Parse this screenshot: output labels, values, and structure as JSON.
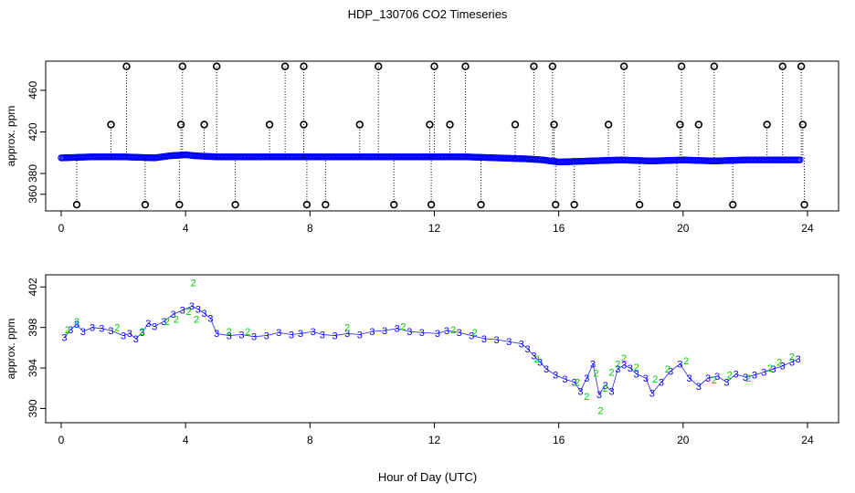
{
  "title": "HDP_130706  CO2 Timeseries",
  "colors": {
    "points_black": "#000000",
    "points_blue": "#0000ff",
    "points_green": "#00cc00",
    "points_cyan": "#00cccc"
  },
  "chart_data": [
    {
      "type": "scatter",
      "panel": "top",
      "title": "",
      "xlabel": "",
      "ylabel": "approx. ppm",
      "xlim": [
        -0.5,
        25
      ],
      "ylim": [
        344,
        488
      ],
      "xticks": [
        0,
        4,
        8,
        12,
        16,
        20,
        24
      ],
      "yticks": [
        360,
        380,
        420,
        460
      ],
      "series": [
        {
          "marker": "circle-black",
          "x": [
            0.5,
            2.1,
            1.6,
            2.7,
            3.8,
            3.9,
            3.85,
            4.6,
            5.0,
            5.6,
            6.7,
            7.2,
            7.8,
            7.8,
            7.9,
            8.5,
            9.6,
            10.2,
            10.7,
            11.9,
            11.85,
            12.0,
            12.5,
            13.0,
            13.5,
            14.6,
            15.2,
            15.8,
            15.85,
            15.9,
            16.5,
            17.6,
            18.1,
            18.6,
            19.8,
            19.9,
            19.95,
            20.5,
            21.0,
            21.6,
            22.7,
            23.2,
            23.8,
            23.85,
            23.9
          ],
          "y": [
            350,
            483,
            427,
            350,
            350,
            483,
            427,
            427,
            483,
            350,
            427,
            483,
            483,
            427,
            350,
            350,
            427,
            483,
            350,
            350,
            427,
            483,
            427,
            483,
            350,
            427,
            483,
            483,
            427,
            350,
            350,
            427,
            483,
            350,
            350,
            427,
            483,
            427,
            483,
            350,
            427,
            483,
            483,
            427,
            350
          ]
        }
      ],
      "baseline": {
        "x": [
          0,
          1,
          2,
          3,
          3.5,
          4,
          4.3,
          5,
          6,
          7,
          8,
          9,
          10,
          11,
          12,
          13,
          14,
          15,
          15.5,
          16,
          17,
          18,
          19,
          20,
          21,
          22,
          23,
          23.8
        ],
        "y": [
          395,
          396,
          396,
          395,
          397,
          398,
          397,
          396,
          396,
          396,
          396,
          396,
          396,
          396,
          396,
          396,
          395,
          394,
          393,
          391,
          392,
          393,
          392,
          393,
          392,
          393,
          393,
          393
        ]
      }
    },
    {
      "type": "scatter",
      "panel": "bottom",
      "title": "",
      "xlabel": "Hour of Day (UTC)",
      "ylabel": "approx. ppm",
      "xlim": [
        -0.5,
        25
      ],
      "ylim": [
        388.6,
        403.2
      ],
      "xticks": [
        0,
        4,
        8,
        12,
        16,
        20,
        24
      ],
      "yticks": [
        390,
        394,
        398,
        402
      ],
      "series": [
        {
          "label_glyph": "3",
          "color": "#0000ff",
          "x": [
            0.1,
            0.3,
            0.5,
            0.7,
            1.0,
            1.3,
            1.6,
            2.0,
            2.2,
            2.4,
            2.6,
            2.8,
            3.0,
            3.3,
            3.6,
            3.9,
            4.2,
            4.4,
            4.6,
            4.8,
            5.0,
            5.4,
            5.8,
            6.2,
            6.6,
            7.0,
            7.4,
            7.7,
            8.1,
            8.4,
            8.8,
            9.2,
            9.6,
            10.0,
            10.4,
            10.8,
            11.2,
            11.6,
            12.1,
            12.4,
            12.8,
            13.2,
            13.6,
            14.0,
            14.4,
            14.8,
            15.0,
            15.2,
            15.4,
            15.6,
            15.9,
            16.2,
            16.5,
            16.7,
            16.9,
            17.1,
            17.3,
            17.5,
            17.7,
            17.9,
            18.1,
            18.3,
            18.5,
            18.8,
            19.0,
            19.3,
            19.6,
            19.9,
            20.2,
            20.5,
            20.8,
            21.1,
            21.4,
            21.7,
            22.0,
            22.3,
            22.6,
            22.9,
            23.2,
            23.5,
            23.7
          ],
          "y": [
            397.0,
            397.8,
            398.3,
            397.6,
            398.0,
            397.9,
            397.7,
            397.2,
            397.4,
            396.9,
            397.5,
            398.4,
            398.1,
            398.6,
            399.3,
            399.7,
            400.1,
            399.8,
            399.4,
            398.9,
            397.4,
            397.2,
            397.3,
            397.1,
            397.2,
            397.5,
            397.3,
            397.4,
            397.6,
            397.3,
            397.2,
            397.4,
            397.3,
            397.6,
            397.7,
            397.9,
            397.6,
            397.5,
            397.4,
            397.7,
            397.5,
            397.2,
            396.9,
            396.8,
            396.6,
            396.4,
            395.9,
            395.2,
            394.6,
            393.9,
            393.3,
            392.9,
            392.6,
            391.7,
            393.0,
            394.4,
            391.4,
            392.3,
            391.7,
            393.9,
            394.3,
            394.0,
            393.4,
            393.0,
            391.5,
            392.6,
            393.7,
            394.4,
            393.0,
            392.2,
            393.0,
            393.2,
            392.6,
            393.4,
            393.1,
            393.3,
            393.6,
            393.9,
            394.2,
            394.6,
            394.9
          ]
        },
        {
          "label_glyph": "2",
          "color": "#00cc00",
          "x": [
            0.2,
            0.5,
            1.8,
            2.6,
            3.4,
            3.7,
            4.1,
            4.25,
            4.35,
            5.4,
            6.0,
            9.2,
            11.0,
            12.6,
            13.3,
            15.3,
            16.6,
            16.9,
            17.2,
            17.35,
            17.5,
            17.7,
            17.9,
            18.1,
            18.5,
            19.1,
            19.5,
            20.1,
            21.0,
            21.5,
            22.1,
            22.8,
            23.1,
            23.5
          ],
          "y": [
            397.8,
            398.6,
            398.0,
            397.6,
            398.6,
            398.8,
            399.6,
            402.4,
            398.8,
            397.6,
            397.6,
            398.0,
            398.1,
            397.8,
            397.5,
            394.9,
            392.6,
            391.2,
            393.5,
            389.8,
            392.0,
            393.6,
            394.4,
            395.0,
            394.1,
            392.9,
            393.9,
            394.7,
            392.8,
            393.3,
            393.0,
            394.0,
            394.6,
            395.1
          ]
        }
      ]
    }
  ]
}
